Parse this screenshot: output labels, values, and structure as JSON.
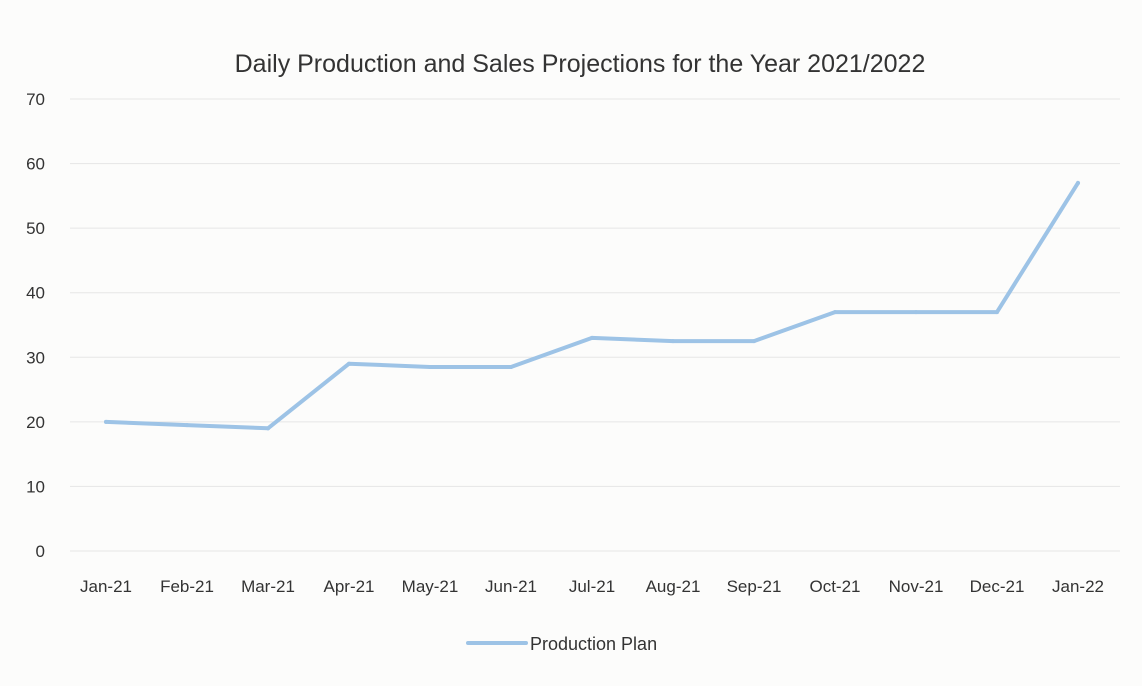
{
  "chart_data": {
    "type": "line",
    "title": "Daily Production and Sales Projections for the Year 2021/2022",
    "xlabel": "",
    "ylabel": "",
    "categories": [
      "Jan-21",
      "Feb-21",
      "Mar-21",
      "Apr-21",
      "May-21",
      "Jun-21",
      "Jul-21",
      "Aug-21",
      "Sep-21",
      "Oct-21",
      "Nov-21",
      "Dec-21",
      "Jan-22"
    ],
    "series": [
      {
        "name": "Production Plan",
        "values": [
          20,
          19.5,
          19,
          29,
          28.5,
          28.5,
          33,
          32.5,
          32.5,
          37,
          37,
          37,
          57
        ],
        "color": "#9dc3e6"
      }
    ],
    "ylim": [
      0,
      70
    ],
    "yticks": [
      0,
      10,
      20,
      30,
      40,
      50,
      60,
      70
    ],
    "grid": true,
    "legend_position": "bottom"
  }
}
